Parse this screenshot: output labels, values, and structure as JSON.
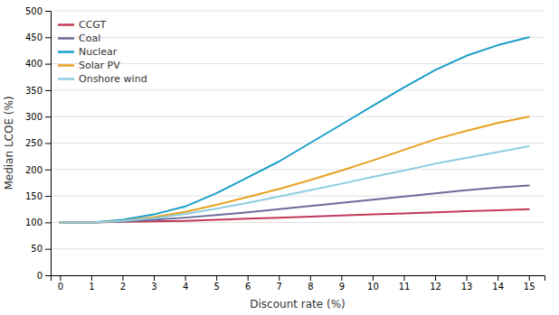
{
  "chart_data": {
    "type": "line",
    "xlabel": "Discount rate (%)",
    "ylabel": "Median LCOE (%)",
    "x": [
      0,
      1,
      2,
      3,
      4,
      5,
      6,
      7,
      8,
      9,
      10,
      11,
      12,
      13,
      14,
      15
    ],
    "series": [
      {
        "name": "CCGT",
        "color": "#c0395a",
        "values": [
          100,
          100,
          101,
          102,
          103,
          105,
          107,
          109,
          111,
          113,
          115,
          117,
          119,
          121,
          123,
          125
        ]
      },
      {
        "name": "Coal",
        "color": "#6b6b9a",
        "values": [
          100,
          100,
          102,
          105,
          109,
          114,
          119,
          125,
          131,
          137,
          143,
          149,
          155,
          161,
          166,
          170
        ]
      },
      {
        "name": "Nuclear",
        "color": "#1a9ec9",
        "values": [
          100,
          100,
          105,
          115,
          130,
          155,
          185,
          215,
          250,
          285,
          320,
          355,
          388,
          415,
          435,
          450
        ]
      },
      {
        "name": "Solar PV",
        "color": "#e8a020",
        "values": [
          100,
          100,
          103,
          110,
          120,
          133,
          148,
          163,
          180,
          198,
          217,
          237,
          257,
          273,
          288,
          300
        ]
      },
      {
        "name": "Onshore wind",
        "color": "#8dcce0",
        "values": [
          100,
          100,
          103,
          108,
          116,
          126,
          137,
          149,
          161,
          173,
          186,
          198,
          211,
          222,
          233,
          244
        ]
      }
    ],
    "xlim": [
      -0.3,
      15.5
    ],
    "ylim": [
      0,
      500
    ],
    "xticks": [
      0,
      1,
      2,
      3,
      4,
      5,
      6,
      7,
      8,
      9,
      10,
      11,
      12,
      13,
      14,
      15
    ],
    "yticks": [
      0,
      50,
      100,
      150,
      200,
      250,
      300,
      350,
      400,
      450,
      500
    ],
    "grid": true,
    "legend": "top-left"
  }
}
